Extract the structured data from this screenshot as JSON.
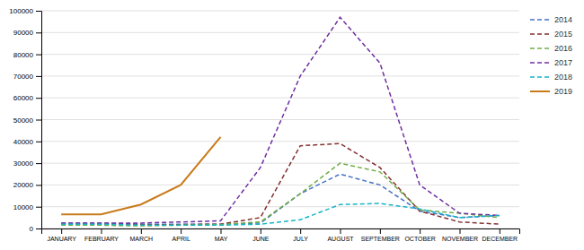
{
  "chart_data": {
    "type": "line",
    "categories": [
      "JANUARY",
      "FEBRUARY",
      "MARCH",
      "APRIL",
      "MAY",
      "JUNE",
      "JULY",
      "AUGUST",
      "SEPTEMBER",
      "OCTOBER",
      "NOVEMBER",
      "DECEMBER"
    ],
    "series": [
      {
        "name": "2014",
        "color": "#4472c4",
        "line_style": "dashed",
        "values": [
          2500,
          2500,
          2000,
          2000,
          2000,
          2500,
          16000,
          25000,
          20000,
          8000,
          5000,
          6000
        ]
      },
      {
        "name": "2015",
        "color": "#833232",
        "line_style": "dashed",
        "values": [
          2000,
          2000,
          1800,
          1800,
          2000,
          5000,
          38000,
          39000,
          28000,
          8000,
          3000,
          2000
        ]
      },
      {
        "name": "2016",
        "color": "#70ad47",
        "line_style": "dashed",
        "values": [
          1500,
          1500,
          1200,
          1500,
          1800,
          3000,
          16000,
          30000,
          26000,
          8500,
          7000,
          5000
        ]
      },
      {
        "name": "2017",
        "color": "#7030a0",
        "line_style": "dashed",
        "values": [
          2500,
          2500,
          2500,
          3000,
          3500,
          28000,
          70000,
          97000,
          76000,
          20000,
          7000,
          6000
        ]
      },
      {
        "name": "2018",
        "color": "#17b5c9",
        "line_style": "dashed",
        "values": [
          2000,
          2000,
          1500,
          1500,
          1500,
          2000,
          4000,
          11000,
          11500,
          9000,
          5000,
          6000
        ]
      },
      {
        "name": "2019",
        "color": "#c97a1a",
        "line_style": "solid",
        "values": [
          6500,
          6500,
          11000,
          20000,
          42000,
          null,
          null,
          null,
          null,
          null,
          null,
          null
        ]
      }
    ],
    "ylim": [
      0,
      100000
    ],
    "yticks": [
      0,
      10000,
      20000,
      30000,
      40000,
      50000,
      60000,
      70000,
      80000,
      90000,
      100000
    ],
    "grid": true,
    "legend": "right"
  }
}
